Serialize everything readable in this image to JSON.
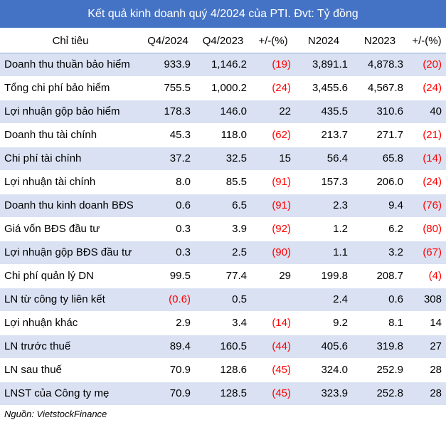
{
  "title": "Kết quả kinh doanh quý 4/2024 của PTI. Đvt: Tỷ đồng",
  "headers": [
    "Chỉ tiêu",
    "Q4/2024",
    "Q4/2023",
    "+/-(%)",
    "N2024",
    "N2023",
    "+/-(%)"
  ],
  "rows": [
    {
      "label": "Doanh thu thuần bảo hiểm",
      "cells": [
        "933.9",
        "1,146.2",
        "(19)",
        "3,891.1",
        "4,878.3",
        "(20)"
      ]
    },
    {
      "label": "Tổng chi phí bảo hiểm",
      "cells": [
        "755.5",
        "1,000.2",
        "(24)",
        "3,455.6",
        "4,567.8",
        "(24)"
      ]
    },
    {
      "label": "Lợi nhuận gộp  bảo hiểm",
      "cells": [
        "178.3",
        "146.0",
        "22",
        "435.5",
        "310.6",
        "40"
      ]
    },
    {
      "label": "Doanh thu tài chính",
      "cells": [
        "45.3",
        "118.0",
        "(62)",
        "213.7",
        "271.7",
        "(21)"
      ]
    },
    {
      "label": "Chi phí tài chính",
      "cells": [
        "37.2",
        "32.5",
        "15",
        "56.4",
        "65.8",
        "(14)"
      ]
    },
    {
      "label": "Lợi nhuận tài chính",
      "cells": [
        "8.0",
        "85.5",
        "(91)",
        "157.3",
        "206.0",
        "(24)"
      ]
    },
    {
      "label": "Doanh thu kinh doanh BĐS",
      "cells": [
        "0.6",
        "6.5",
        "(91)",
        "2.3",
        "9.4",
        "(76)"
      ]
    },
    {
      "label": "Giá vốn BĐS đầu tư",
      "cells": [
        "0.3",
        "3.9",
        "(92)",
        "1.2",
        "6.2",
        "(80)"
      ]
    },
    {
      "label": "Lợi nhuận gộp BĐS đầu tư",
      "cells": [
        "0.3",
        "2.5",
        "(90)",
        "1.1",
        "3.2",
        "(67)"
      ]
    },
    {
      "label": "Chi phí quản lý DN",
      "cells": [
        "99.5",
        "77.4",
        "29",
        "199.8",
        "208.7",
        "(4)"
      ]
    },
    {
      "label": "LN từ công ty liên kết",
      "cells": [
        "(0.6)",
        "0.5",
        "",
        "2.4",
        "0.6",
        "308"
      ]
    },
    {
      "label": "Lợi nhuận khác",
      "cells": [
        "2.9",
        "3.4",
        "(14)",
        "9.2",
        "8.1",
        "14"
      ]
    },
    {
      "label": "LN trước thuế",
      "cells": [
        "89.4",
        "160.5",
        "(44)",
        "405.6",
        "319.8",
        "27"
      ]
    },
    {
      "label": "LN sau thuế",
      "cells": [
        "70.9",
        "128.6",
        "(45)",
        "324.0",
        "252.9",
        "28"
      ]
    },
    {
      "label": "LNST của Công ty mẹ",
      "cells": [
        "70.9",
        "128.5",
        "(45)",
        "323.9",
        "252.8",
        "28"
      ]
    }
  ],
  "source": "Nguồn: VietstockFinance",
  "colors": {
    "header_bg": "#4472c4",
    "row_shade": "#d9e1f2",
    "negative": "#ff0000"
  }
}
